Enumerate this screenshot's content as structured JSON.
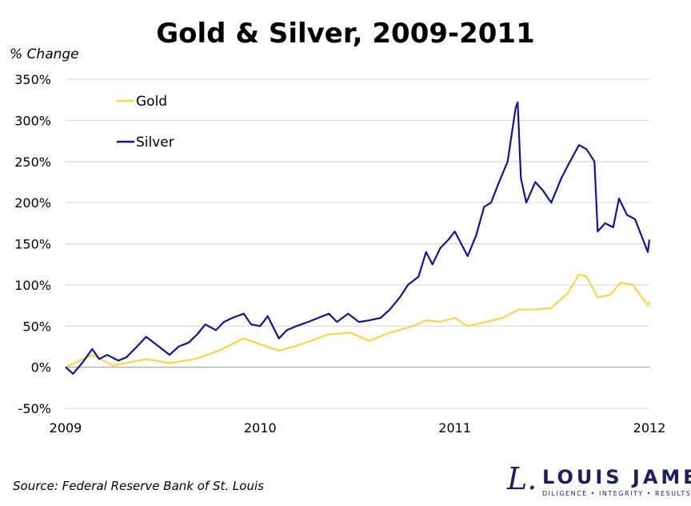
{
  "chart_data": {
    "type": "line",
    "title": "Gold & Silver, 2009-2011",
    "ylabel": "% Change",
    "xlabel": "",
    "source": "Source: Federal Reserve Bank of St. Louis",
    "xlim": [
      "2009-01-01",
      "2012-01-01"
    ],
    "ylim": [
      -50,
      350
    ],
    "x_ticks": [
      {
        "label": "2009",
        "date": "2009-01-01"
      },
      {
        "label": "2010",
        "date": "2010-01-01"
      },
      {
        "label": "2011",
        "date": "2011-01-01"
      },
      {
        "label": "2012",
        "date": "2012-01-01"
      }
    ],
    "y_ticks": [
      {
        "label": "-50%",
        "v": -50
      },
      {
        "label": "0%",
        "v": 0
      },
      {
        "label": "50%",
        "v": 50
      },
      {
        "label": "100%",
        "v": 100
      },
      {
        "label": "150%",
        "v": 150
      },
      {
        "label": "200%",
        "v": 200
      },
      {
        "label": "250%",
        "v": 250
      },
      {
        "label": "300%",
        "v": 300
      },
      {
        "label": "350%",
        "v": 350
      }
    ],
    "grid": true,
    "legend_placement": "top-left",
    "series": [
      {
        "name": "Gold",
        "color": "#fcd44c",
        "points": [
          [
            "2009-01-01",
            0
          ],
          [
            "2009-02-20",
            15
          ],
          [
            "2009-04-01",
            2
          ],
          [
            "2009-06-01",
            10
          ],
          [
            "2009-07-15",
            5
          ],
          [
            "2009-09-01",
            10
          ],
          [
            "2009-10-15",
            20
          ],
          [
            "2009-12-01",
            35
          ],
          [
            "2010-01-01",
            28
          ],
          [
            "2010-02-05",
            20
          ],
          [
            "2010-03-15",
            27
          ],
          [
            "2010-05-10",
            40
          ],
          [
            "2010-06-20",
            42
          ],
          [
            "2010-07-25",
            32
          ],
          [
            "2010-09-01",
            42
          ],
          [
            "2010-10-15",
            50
          ],
          [
            "2010-11-08",
            57
          ],
          [
            "2010-12-05",
            55
          ],
          [
            "2011-01-01",
            60
          ],
          [
            "2011-01-25",
            50
          ],
          [
            "2011-03-01",
            55
          ],
          [
            "2011-04-01",
            60
          ],
          [
            "2011-05-01",
            70
          ],
          [
            "2011-06-01",
            70
          ],
          [
            "2011-07-01",
            72
          ],
          [
            "2011-08-01",
            90
          ],
          [
            "2011-08-22",
            113
          ],
          [
            "2011-09-05",
            110
          ],
          [
            "2011-09-26",
            85
          ],
          [
            "2011-10-20",
            88
          ],
          [
            "2011-11-08",
            103
          ],
          [
            "2011-12-01",
            100
          ],
          [
            "2011-12-29",
            75
          ],
          [
            "2012-01-01",
            80
          ]
        ]
      },
      {
        "name": "Silver",
        "color": "#14148c",
        "points": [
          [
            "2009-01-01",
            0
          ],
          [
            "2009-01-15",
            -8
          ],
          [
            "2009-02-01",
            5
          ],
          [
            "2009-02-20",
            22
          ],
          [
            "2009-03-05",
            10
          ],
          [
            "2009-03-20",
            15
          ],
          [
            "2009-04-10",
            8
          ],
          [
            "2009-04-25",
            12
          ],
          [
            "2009-05-15",
            25
          ],
          [
            "2009-06-01",
            37
          ],
          [
            "2009-06-15",
            30
          ],
          [
            "2009-07-01",
            22
          ],
          [
            "2009-07-15",
            15
          ],
          [
            "2009-08-01",
            25
          ],
          [
            "2009-08-20",
            30
          ],
          [
            "2009-09-05",
            40
          ],
          [
            "2009-09-20",
            52
          ],
          [
            "2009-10-10",
            45
          ],
          [
            "2009-10-25",
            55
          ],
          [
            "2009-11-10",
            60
          ],
          [
            "2009-12-01",
            65
          ],
          [
            "2009-12-15",
            52
          ],
          [
            "2010-01-01",
            50
          ],
          [
            "2010-01-15",
            62
          ],
          [
            "2010-02-05",
            35
          ],
          [
            "2010-02-20",
            45
          ],
          [
            "2010-03-10",
            50
          ],
          [
            "2010-04-01",
            55
          ],
          [
            "2010-04-20",
            60
          ],
          [
            "2010-05-10",
            65
          ],
          [
            "2010-05-25",
            55
          ],
          [
            "2010-06-15",
            65
          ],
          [
            "2010-07-05",
            55
          ],
          [
            "2010-07-25",
            57
          ],
          [
            "2010-08-15",
            60
          ],
          [
            "2010-09-01",
            70
          ],
          [
            "2010-09-20",
            85
          ],
          [
            "2010-10-05",
            100
          ],
          [
            "2010-10-25",
            110
          ],
          [
            "2010-11-08",
            140
          ],
          [
            "2010-11-20",
            125
          ],
          [
            "2010-12-05",
            145
          ],
          [
            "2010-12-20",
            155
          ],
          [
            "2011-01-01",
            165
          ],
          [
            "2011-01-25",
            135
          ],
          [
            "2011-02-10",
            160
          ],
          [
            "2011-02-25",
            195
          ],
          [
            "2011-03-10",
            200
          ],
          [
            "2011-03-25",
            225
          ],
          [
            "2011-04-10",
            250
          ],
          [
            "2011-04-25",
            315
          ],
          [
            "2011-04-29",
            322
          ],
          [
            "2011-05-05",
            230
          ],
          [
            "2011-05-15",
            200
          ],
          [
            "2011-06-01",
            225
          ],
          [
            "2011-06-15",
            215
          ],
          [
            "2011-07-01",
            200
          ],
          [
            "2011-07-20",
            230
          ],
          [
            "2011-08-05",
            250
          ],
          [
            "2011-08-22",
            270
          ],
          [
            "2011-09-05",
            265
          ],
          [
            "2011-09-20",
            250
          ],
          [
            "2011-09-26",
            165
          ],
          [
            "2011-10-10",
            175
          ],
          [
            "2011-10-25",
            170
          ],
          [
            "2011-11-05",
            205
          ],
          [
            "2011-11-20",
            185
          ],
          [
            "2011-12-05",
            180
          ],
          [
            "2011-12-20",
            155
          ],
          [
            "2011-12-29",
            140
          ],
          [
            "2012-01-01",
            155
          ]
        ]
      }
    ]
  },
  "logo": {
    "name": "LOUIS JAMES",
    "tagline": "DILIGENCE • INTEGRITY • RESULTS",
    "mark": "L."
  }
}
